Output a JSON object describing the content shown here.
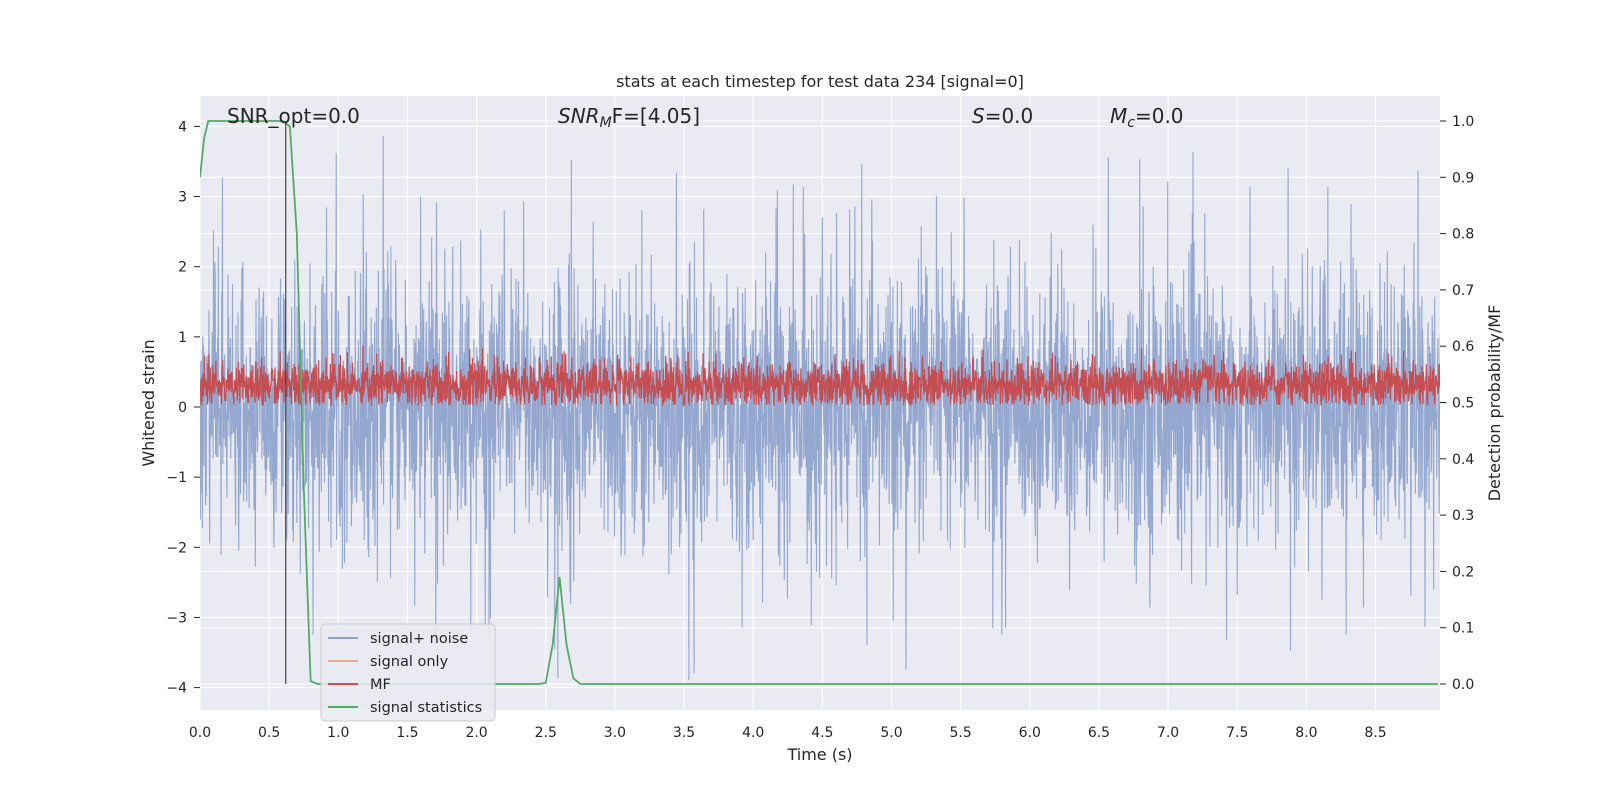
{
  "chart_data": {
    "type": "line",
    "title": "stats at each timestep for test data 234 [signal=0]",
    "xlabel": "Time (s)",
    "ylabel": "Whitened strain",
    "ylabel_right": "Detection probability/MF",
    "xlim": [
      0.0,
      9.0
    ],
    "ylim": [
      -4.35,
      4.4
    ],
    "ylim_right": [
      -0.05,
      1.04
    ],
    "xticks": [
      "0.0",
      "0.5",
      "1.0",
      "1.5",
      "2.0",
      "2.5",
      "3.0",
      "3.5",
      "4.0",
      "4.5",
      "5.0",
      "5.5",
      "6.0",
      "6.5",
      "7.0",
      "7.5",
      "8.0",
      "8.5"
    ],
    "yticks": [
      "−4",
      "−3",
      "−2",
      "−1",
      "0",
      "1",
      "2",
      "3",
      "4"
    ],
    "yticks_right": [
      "0.0",
      "0.1",
      "0.2",
      "0.3",
      "0.4",
      "0.5",
      "0.6",
      "0.7",
      "0.8",
      "0.9",
      "1.0"
    ],
    "grid": true,
    "legend_position": "lower-left",
    "annotations": {
      "snr_opt": "SNR_opt=0.0",
      "snr_mf_main": "SNR",
      "snr_mf_sub": "M",
      "snr_mf_tail": "F=[4.05]",
      "s_var": "S",
      "s_tail": "=0.0",
      "mc_var": "M",
      "mc_sub": "c",
      "mc_tail": "=0.0"
    },
    "vline_x": 0.62,
    "series": [
      {
        "name": "signal+ noise",
        "color": "#8fa3cc",
        "axis": "left",
        "description_of_shape": "dense whitened noise roughly spanning -2.5 to 2.5 with spikes to ~4"
      },
      {
        "name": "signal only",
        "color": "#e8a98c",
        "axis": "left",
        "values": []
      },
      {
        "name": "MF",
        "color": "#c44e52",
        "axis": "left",
        "range": [
          0.0,
          1.0
        ]
      },
      {
        "name": "signal statistics",
        "color": "#55a868",
        "axis": "right",
        "x": [
          0.0,
          0.03,
          0.06,
          0.6,
          0.65,
          0.7,
          0.75,
          0.8,
          0.85,
          2.45,
          2.5,
          2.55,
          2.6,
          2.65,
          2.7,
          2.75,
          8.95
        ],
        "y": [
          0.9,
          0.97,
          1.0,
          1.0,
          0.99,
          0.8,
          0.35,
          0.005,
          0.0,
          0.0,
          0.002,
          0.07,
          0.19,
          0.07,
          0.01,
          0.0,
          0.0
        ]
      }
    ]
  }
}
